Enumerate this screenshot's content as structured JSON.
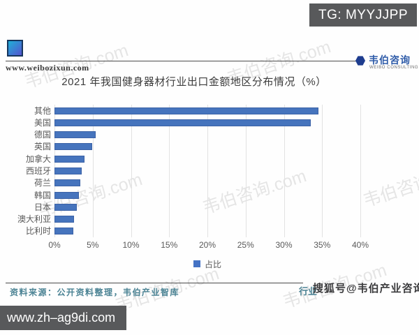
{
  "overlays": {
    "tg_badge": "TG: MYYJJPP",
    "bottom_badge": "www.zh–ag9di.com"
  },
  "header": {
    "site_url": "www.weibozixun.com",
    "brand_name": "韦伯咨询",
    "brand_sub": "WEIBO CONSULTING"
  },
  "chart_data": {
    "type": "bar",
    "orientation": "horizontal",
    "title": "2021 年我国健身器材行业出口金额地区分布情况（%）",
    "categories": [
      "其他",
      "美国",
      "德国",
      "英国",
      "加拿大",
      "西班牙",
      "荷兰",
      "韩国",
      "日本",
      "澳大利亚",
      "比利时"
    ],
    "values": [
      34.5,
      33.5,
      5.4,
      4.9,
      3.9,
      3.6,
      3.4,
      3.2,
      2.9,
      2.6,
      2.5
    ],
    "series_name": "占比",
    "xlabel": "",
    "ylabel": "",
    "x_ticks": [
      "0%",
      "5%",
      "10%",
      "15%",
      "20%",
      "25%",
      "30%",
      "35%",
      "40%"
    ],
    "xlim": [
      0,
      40
    ],
    "grid": true,
    "legend_position": "bottom",
    "bar_color": "#4472c4"
  },
  "footer": {
    "source": "资料来源：公开资料整理，韦伯产业智库",
    "overlay_teal": "行业",
    "overlay_dark": "搜狐号@韦伯产业咨询"
  },
  "watermark": {
    "text": "韦伯咨询.com"
  }
}
